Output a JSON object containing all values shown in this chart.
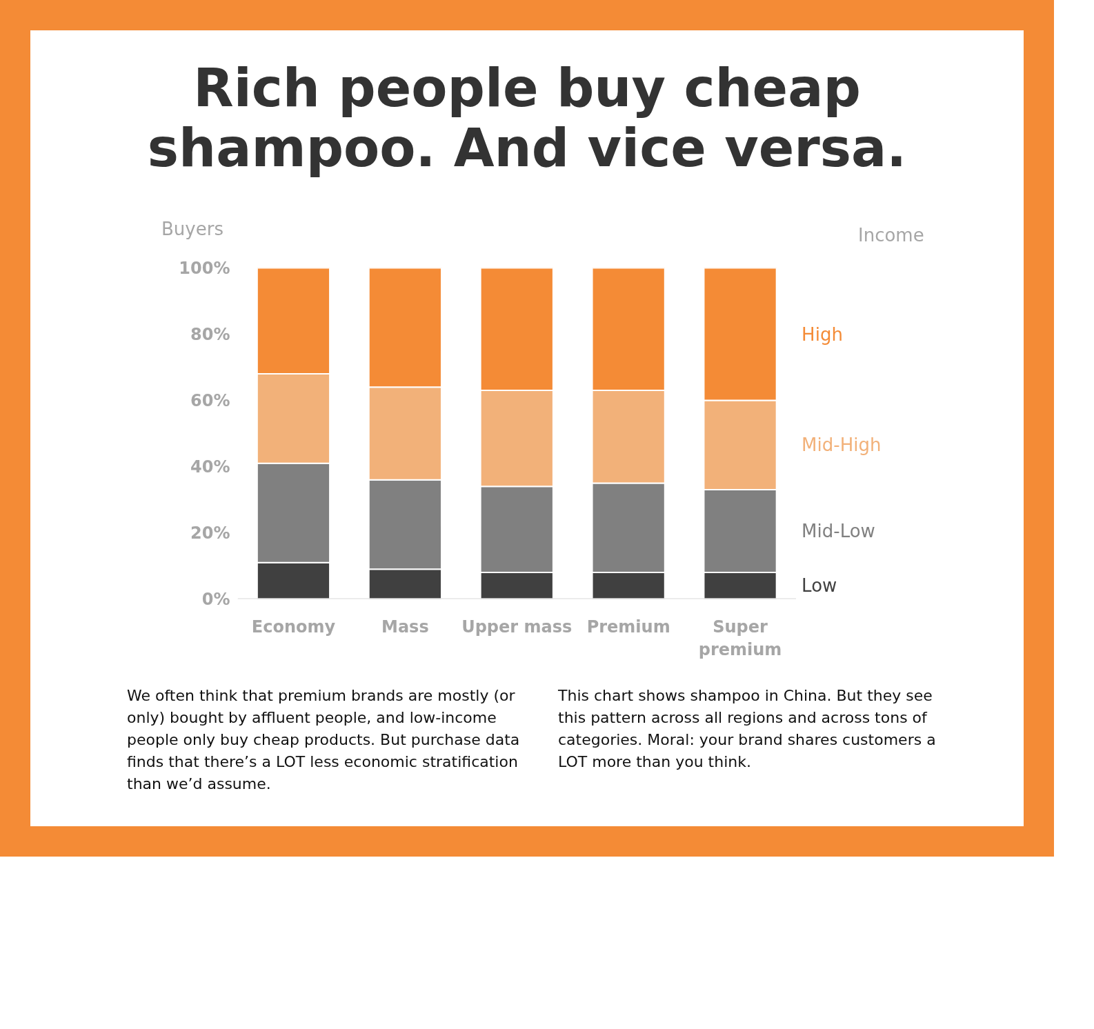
{
  "chart_data": {
    "type": "bar",
    "stacked": true,
    "title": "Rich people buy cheap shampoo. And vice versa.",
    "ylabel": "Buyers",
    "legend_title": "Income",
    "categories": [
      "Economy",
      "Mass",
      "Upper mass",
      "Premium",
      "Super premium"
    ],
    "series": [
      {
        "name": "Low",
        "color": "#404040",
        "values": [
          11,
          9,
          8,
          8,
          8
        ]
      },
      {
        "name": "Mid-Low",
        "color": "#808080",
        "values": [
          30,
          27,
          26,
          27,
          25
        ]
      },
      {
        "name": "Mid-High",
        "color": "#f2b179",
        "values": [
          27,
          28,
          29,
          28,
          27
        ]
      },
      {
        "name": "High",
        "color": "#f48b36",
        "values": [
          32,
          36,
          37,
          37,
          40
        ]
      }
    ],
    "ylim": [
      0,
      100
    ],
    "yticks": [
      {
        "value": 0,
        "label": "0%"
      },
      {
        "value": 20,
        "label": "20%"
      },
      {
        "value": 40,
        "label": "40%"
      },
      {
        "value": 60,
        "label": "60%"
      },
      {
        "value": 80,
        "label": "80%"
      },
      {
        "value": 100,
        "label": "100%"
      }
    ],
    "grid": false,
    "annotations": [
      "We often think that premium brands are mostly (or only) bought by affluent people, and low-income people only buy cheap products. But purchase data finds that there’s a LOT less economic stratification than we’d assume.",
      "This chart shows shampoo in China. But they see this pattern across all regions and across tons of categories. Moral: your brand shares customers a LOT more than you think."
    ]
  }
}
